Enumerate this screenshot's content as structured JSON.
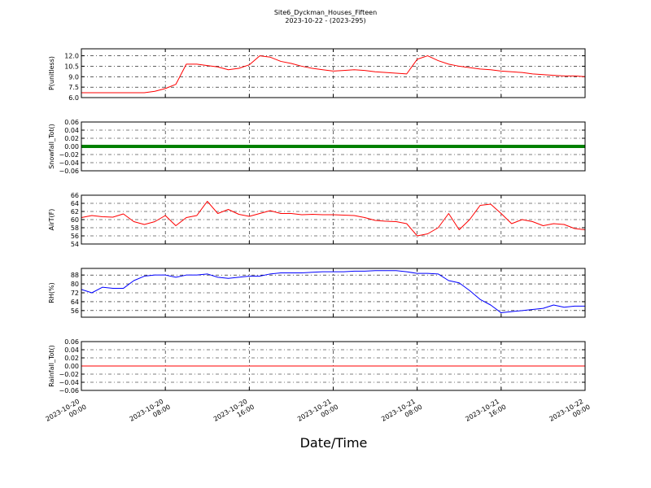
{
  "chart_data": {
    "title": "Site6_Dyckman_Houses_Fifteen",
    "subtitle": "2023-10-22 - (2023-295)",
    "xlabel": "Date/Time",
    "x": [
      "2023-10-20 00:00",
      "2023-10-20 01:00",
      "2023-10-20 02:00",
      "2023-10-20 03:00",
      "2023-10-20 04:00",
      "2023-10-20 05:00",
      "2023-10-20 06:00",
      "2023-10-20 07:00",
      "2023-10-20 08:00",
      "2023-10-20 09:00",
      "2023-10-20 10:00",
      "2023-10-20 11:00",
      "2023-10-20 12:00",
      "2023-10-20 13:00",
      "2023-10-20 14:00",
      "2023-10-20 15:00",
      "2023-10-20 16:00",
      "2023-10-20 17:00",
      "2023-10-20 18:00",
      "2023-10-20 19:00",
      "2023-10-20 20:00",
      "2023-10-20 21:00",
      "2023-10-20 22:00",
      "2023-10-20 23:00",
      "2023-10-21 00:00",
      "2023-10-21 01:00",
      "2023-10-21 02:00",
      "2023-10-21 03:00",
      "2023-10-21 04:00",
      "2023-10-21 05:00",
      "2023-10-21 06:00",
      "2023-10-21 07:00",
      "2023-10-21 08:00",
      "2023-10-21 09:00",
      "2023-10-21 10:00",
      "2023-10-21 11:00",
      "2023-10-21 12:00",
      "2023-10-21 13:00",
      "2023-10-21 14:00",
      "2023-10-21 15:00",
      "2023-10-21 16:00",
      "2023-10-21 17:00",
      "2023-10-21 18:00",
      "2023-10-21 19:00",
      "2023-10-21 20:00",
      "2023-10-21 21:00",
      "2023-10-21 22:00",
      "2023-10-21 23:00",
      "2023-10-22 00:00"
    ],
    "xlim": [
      "2023-10-20 00:00",
      "2023-10-22 00:00"
    ],
    "xticks": [
      {
        "value": "2023-10-20 00:00",
        "label": [
          "2023-10-20",
          "00:00"
        ]
      },
      {
        "value": "2023-10-20 08:00",
        "label": [
          "2023-10-20",
          "08:00"
        ]
      },
      {
        "value": "2023-10-20 16:00",
        "label": [
          "2023-10-20",
          "16:00"
        ]
      },
      {
        "value": "2023-10-21 00:00",
        "label": [
          "2023-10-21",
          "00:00"
        ]
      },
      {
        "value": "2023-10-21 08:00",
        "label": [
          "2023-10-21",
          "08:00"
        ]
      },
      {
        "value": "2023-10-21 16:00",
        "label": [
          "2023-10-21",
          "16:00"
        ]
      },
      {
        "value": "2023-10-22 00:00",
        "label": [
          "2023-10-22",
          "00:00"
        ]
      }
    ],
    "grid": true,
    "panels": [
      {
        "type": "line",
        "ylabel": "P(unitless)",
        "color": "#ff0000",
        "ylim": [
          6,
          13
        ],
        "yticks": [
          {
            "value": 6,
            "label": "6.0"
          },
          7.5,
          {
            "value": 9,
            "label": "9.0"
          },
          10.5,
          {
            "value": 12,
            "label": "12.0"
          }
        ],
        "values": [
          6.7,
          6.7,
          6.7,
          6.7,
          6.7,
          6.7,
          6.7,
          6.9,
          7.3,
          7.9,
          10.8,
          10.8,
          10.6,
          10.4,
          10.0,
          10.2,
          10.7,
          12.0,
          11.8,
          11.2,
          10.9,
          10.5,
          10.2,
          10.0,
          9.8,
          9.9,
          10.0,
          9.9,
          9.7,
          9.6,
          9.5,
          9.4,
          11.5,
          12.0,
          11.3,
          10.8,
          10.5,
          10.3,
          10.1,
          10.0,
          9.8,
          9.7,
          9.6,
          9.4,
          9.3,
          9.2,
          9.1,
          9.1,
          9.0
        ]
      },
      {
        "type": "line",
        "ylabel": "Snowfall_Tot()",
        "color": "#008000",
        "marker": true,
        "ylim": [
          -0.06,
          0.06
        ],
        "yticks": [
          {
            "value": -0.06,
            "label": "−0.06"
          },
          {
            "value": -0.04,
            "label": "−0.04"
          },
          {
            "value": -0.02,
            "label": "−0.02"
          },
          {
            "value": 0,
            "label": "0.00"
          },
          0.02,
          0.04,
          0.06
        ],
        "values": [
          0,
          0,
          0,
          0,
          0,
          0,
          0,
          0,
          0,
          0,
          0,
          0,
          0,
          0,
          0,
          0,
          0,
          0,
          0,
          0,
          0,
          0,
          0,
          0,
          0,
          0,
          0,
          0,
          0,
          0,
          0,
          0,
          0,
          0,
          0,
          0,
          0,
          0,
          0,
          0,
          0,
          0,
          0,
          0,
          0,
          0,
          0,
          0,
          0
        ]
      },
      {
        "type": "line",
        "ylabel": "AirT(F)",
        "color": "#ff0000",
        "ylim": [
          54,
          66
        ],
        "yticks": [
          54,
          56,
          58,
          60,
          62,
          64,
          66
        ],
        "values": [
          60.5,
          61,
          60.7,
          60.6,
          61.4,
          59.5,
          58.8,
          59.5,
          61,
          58.5,
          60.5,
          61,
          64.5,
          61.5,
          62.5,
          61.3,
          60.8,
          61.5,
          62.2,
          61.5,
          61.5,
          61.2,
          61.3,
          61.2,
          61.2,
          61.1,
          61.0,
          60.5,
          59.8,
          59.6,
          59.5,
          59.0,
          56.0,
          56.5,
          58.0,
          61.5,
          57.5,
          60.0,
          63.5,
          63.8,
          61.5,
          59.0,
          60.0,
          59.5,
          58.5,
          59.0,
          58.8,
          57.8,
          57.5
        ]
      },
      {
        "type": "line",
        "ylabel": "RH(%)",
        "color": "#0000ff",
        "ylim": [
          50,
          94
        ],
        "yticks": [
          56,
          64,
          72,
          80,
          88
        ],
        "values": [
          75,
          72,
          77,
          76,
          76,
          83,
          87,
          88,
          88,
          86,
          88,
          88,
          89,
          86,
          85,
          86,
          87,
          87,
          89,
          90,
          90,
          90,
          90.5,
          91,
          91,
          91,
          91.5,
          91.5,
          92,
          92,
          92,
          91,
          89.5,
          89.5,
          89,
          83,
          81,
          74,
          66,
          61,
          54,
          55,
          56,
          57,
          58,
          61,
          59,
          60,
          60
        ]
      },
      {
        "type": "line",
        "ylabel": "Rainfall_Tot()",
        "color": "#ff0000",
        "ylim": [
          -0.06,
          0.06
        ],
        "yticks": [
          {
            "value": -0.06,
            "label": "−0.06"
          },
          {
            "value": -0.04,
            "label": "−0.04"
          },
          {
            "value": -0.02,
            "label": "−0.02"
          },
          {
            "value": 0,
            "label": "0.00"
          },
          0.02,
          0.04,
          0.06
        ],
        "values": [
          0,
          0,
          0,
          0,
          0,
          0,
          0,
          0,
          0,
          0,
          0,
          0,
          0,
          0,
          0,
          0,
          0,
          0,
          0,
          0,
          0,
          0,
          0,
          0,
          0,
          0,
          0,
          0,
          0,
          0,
          0,
          0,
          0,
          0,
          0,
          0,
          0,
          0,
          0,
          0,
          0,
          0,
          0,
          0,
          0,
          0,
          0,
          0,
          0
        ]
      }
    ]
  }
}
